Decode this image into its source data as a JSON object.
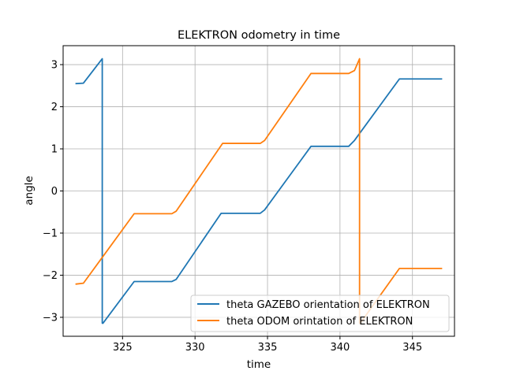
{
  "chart_data": {
    "type": "line",
    "title": "ELEKTRON odometry in time",
    "xlabel": "time",
    "ylabel": "angle",
    "xlim": [
      320.9,
      347.9
    ],
    "ylim": [
      -3.45,
      3.45
    ],
    "xticks": [
      325,
      330,
      335,
      340,
      345
    ],
    "xtick_labels": [
      "325",
      "330",
      "335",
      "340",
      "345"
    ],
    "yticks": [
      -3,
      -2,
      -1,
      0,
      1,
      2,
      3
    ],
    "ytick_labels": [
      "−3",
      "−2",
      "−1",
      "0",
      "1",
      "2",
      "3"
    ],
    "grid": true,
    "legend_position": "lower-right",
    "series": [
      {
        "name": "theta GAZEBO orientation of ELEKTRON",
        "color": "#1f77b4",
        "x": [
          321.8,
          322.3,
          323.6,
          323.6,
          323.65,
          325.8,
          328.4,
          328.7,
          331.8,
          334.5,
          334.8,
          338.0,
          340.6,
          341.0,
          344.1,
          347.0
        ],
        "y": [
          2.55,
          2.56,
          3.14,
          -3.14,
          -3.14,
          -2.15,
          -2.15,
          -2.1,
          -0.53,
          -0.53,
          -0.45,
          1.06,
          1.06,
          1.2,
          2.66,
          2.66
        ]
      },
      {
        "name": "theta ODOM orintation of ELEKTRON",
        "color": "#ff7f0e",
        "x": [
          321.8,
          322.3,
          325.8,
          328.4,
          328.7,
          331.9,
          334.5,
          334.8,
          338.0,
          340.6,
          341.0,
          341.35,
          341.35,
          341.4,
          344.1,
          347.0
        ],
        "y": [
          -2.21,
          -2.19,
          -0.54,
          -0.54,
          -0.48,
          1.13,
          1.13,
          1.2,
          2.79,
          2.79,
          2.86,
          3.14,
          -3.14,
          -3.14,
          -1.84,
          -1.84
        ]
      }
    ]
  }
}
